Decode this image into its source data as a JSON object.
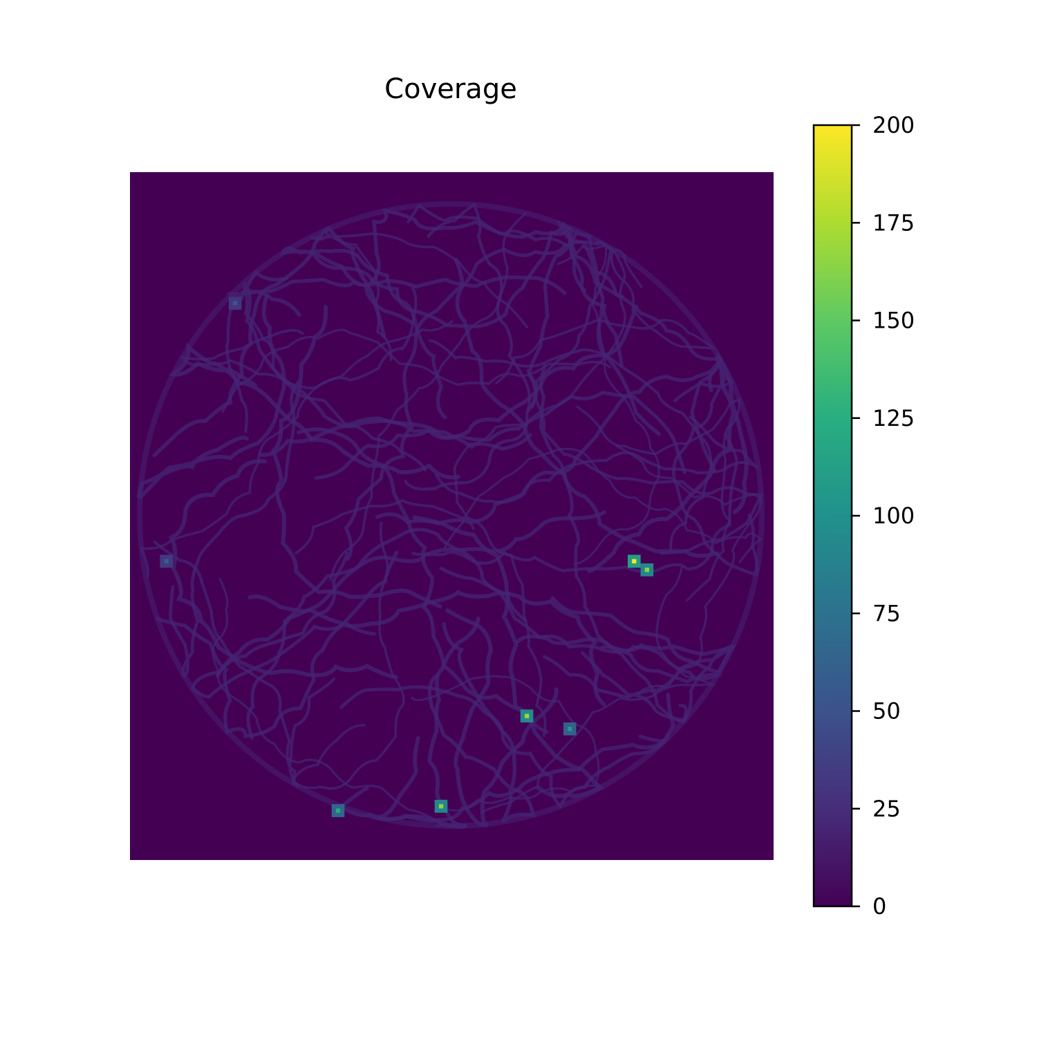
{
  "chart_data": {
    "type": "heatmap",
    "title": "Coverage",
    "xlabel": "",
    "ylabel": "",
    "axes_visible": false,
    "colormap": "viridis",
    "colorbar": {
      "min": 0,
      "max": 200,
      "ticks": [
        0,
        25,
        50,
        75,
        100,
        125,
        150,
        175,
        200
      ],
      "tick_labels": [
        "0",
        "25",
        "50",
        "75",
        "100",
        "125",
        "150",
        "175",
        "200"
      ]
    },
    "grid_shape": [
      160,
      150
    ],
    "background_value": 0,
    "region": "circular",
    "typical_path_value": 20,
    "hotspots": [
      {
        "col": 117,
        "row": 90,
        "value": 200
      },
      {
        "col": 120,
        "row": 92,
        "value": 165
      },
      {
        "col": 92,
        "row": 126,
        "value": 170
      },
      {
        "col": 72,
        "row": 147,
        "value": 165
      },
      {
        "col": 102,
        "row": 129,
        "value": 110
      },
      {
        "col": 48,
        "row": 148,
        "value": 120
      },
      {
        "col": 8,
        "row": 90,
        "value": 60
      },
      {
        "col": 24,
        "row": 30,
        "value": 55
      }
    ],
    "colors": {
      "low": "#440154",
      "mid": "#21918c",
      "high": "#fde725"
    }
  }
}
